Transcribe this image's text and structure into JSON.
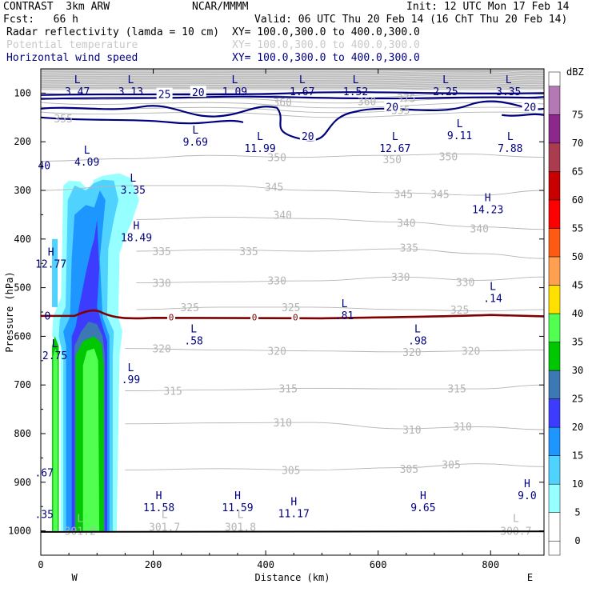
{
  "header": {
    "model": "CONTRAST  3km ARW",
    "center": "NCAR/MMMM",
    "init": "Init: 12 UTC Mon 17 Feb 14",
    "fcst": "Fcst:   66 h",
    "valid": "Valid: 06 UTC Thu 20 Feb 14 (16 ChT Thu 20 Feb 14)",
    "field1": "Radar reflectivity (lamda = 10 cm)",
    "field1_xy": "XY= 100.0,300.0 to 400.0,300.0",
    "field2": "Potential temperature",
    "field2_xy": "XY= 100.0,300.0 to 400.0,300.0",
    "field3": "Horizontal wind speed",
    "field3_xy": "XY= 100.0,300.0 to 400.0,300.0"
  },
  "colors": {
    "theta": "#b4b4b4",
    "wind": "#00007f",
    "freezing": "#7f0000"
  },
  "chart_data": {
    "type": "cross-section",
    "xlabel": "Distance (km)",
    "ylabel": "Pressure (hPa)",
    "xlim": [
      0,
      895
    ],
    "ylim": [
      1050,
      50
    ],
    "x_ticks": [
      0,
      200,
      400,
      600,
      800
    ],
    "y_ticks": [
      100,
      200,
      300,
      400,
      500,
      600,
      700,
      800,
      900,
      1000
    ],
    "west_label": "W",
    "east_label": "E",
    "colorbar": {
      "unit": "dBZ",
      "levels": [
        0,
        5,
        10,
        15,
        20,
        25,
        30,
        35,
        40,
        45,
        50,
        55,
        60,
        65,
        70,
        75
      ],
      "colors": [
        "#ffffff",
        "#96ffff",
        "#50d2ff",
        "#1e96ff",
        "#3c3cff",
        "#3c78b4",
        "#00c800",
        "#50ff50",
        "#ffe100",
        "#ffa050",
        "#ff5a14",
        "#ff0000",
        "#c80000",
        "#aa3c50",
        "#8c288c",
        "#b478b4"
      ]
    },
    "theta_labels": [
      {
        "v": "375",
        "x": 650,
        "p": 110
      },
      {
        "v": "360",
        "x": 430,
        "p": 118
      },
      {
        "v": "360",
        "x": 580,
        "p": 117
      },
      {
        "v": "355",
        "x": 640,
        "p": 135
      },
      {
        "v": "355",
        "x": 40,
        "p": 152
      },
      {
        "v": "350",
        "x": 420,
        "p": 232
      },
      {
        "v": "350",
        "x": 725,
        "p": 230
      },
      {
        "v": "350",
        "x": 625,
        "p": 236
      },
      {
        "v": "345",
        "x": 415,
        "p": 293
      },
      {
        "v": "345",
        "x": 645,
        "p": 307
      },
      {
        "v": "345",
        "x": 710,
        "p": 307
      },
      {
        "v": "340",
        "x": 430,
        "p": 350
      },
      {
        "v": "340",
        "x": 650,
        "p": 367
      },
      {
        "v": "340",
        "x": 780,
        "p": 378
      },
      {
        "v": "335",
        "x": 215,
        "p": 425
      },
      {
        "v": "335",
        "x": 370,
        "p": 425
      },
      {
        "v": "335",
        "x": 655,
        "p": 418
      },
      {
        "v": "330",
        "x": 215,
        "p": 490
      },
      {
        "v": "330",
        "x": 420,
        "p": 485
      },
      {
        "v": "330",
        "x": 640,
        "p": 478
      },
      {
        "v": "330",
        "x": 755,
        "p": 488
      },
      {
        "v": "325",
        "x": 265,
        "p": 540
      },
      {
        "v": "325",
        "x": 445,
        "p": 540
      },
      {
        "v": "325",
        "x": 745,
        "p": 545
      },
      {
        "v": "320",
        "x": 215,
        "p": 625
      },
      {
        "v": "320",
        "x": 420,
        "p": 630
      },
      {
        "v": "320",
        "x": 660,
        "p": 632
      },
      {
        "v": "320",
        "x": 765,
        "p": 630
      },
      {
        "v": "315",
        "x": 235,
        "p": 712
      },
      {
        "v": "315",
        "x": 440,
        "p": 707
      },
      {
        "v": "315",
        "x": 740,
        "p": 707
      },
      {
        "v": "310",
        "x": 430,
        "p": 777
      },
      {
        "v": "310",
        "x": 660,
        "p": 792
      },
      {
        "v": "310",
        "x": 750,
        "p": 785
      },
      {
        "v": "305",
        "x": 445,
        "p": 875
      },
      {
        "v": "305",
        "x": 655,
        "p": 872
      },
      {
        "v": "305",
        "x": 730,
        "p": 863
      }
    ],
    "wind_labels": [
      {
        "v": "25",
        "x": 220,
        "p": 102
      },
      {
        "v": "20",
        "x": 280,
        "p": 98
      },
      {
        "v": "20",
        "x": 625,
        "p": 128
      },
      {
        "v": "20",
        "x": 870,
        "p": 128
      },
      {
        "v": "20",
        "x": 475,
        "p": 188
      }
    ],
    "extrema": [
      {
        "t": "L",
        "v": "3.47",
        "x": 65,
        "p": 80
      },
      {
        "t": "L",
        "v": "3.13",
        "x": 160,
        "p": 80
      },
      {
        "t": "L",
        "v": "1.09",
        "x": 345,
        "p": 80
      },
      {
        "t": "L",
        "v": "1.67",
        "x": 465,
        "p": 80
      },
      {
        "t": "L",
        "v": "1.52",
        "x": 560,
        "p": 80
      },
      {
        "t": "L",
        "v": "2.25",
        "x": 720,
        "p": 80
      },
      {
        "t": "L",
        "v": "3.35",
        "x": 832,
        "p": 80
      },
      {
        "t": "L",
        "v": "9.69",
        "x": 275,
        "p": 183
      },
      {
        "t": "L",
        "v": "11.99",
        "x": 390,
        "p": 196
      },
      {
        "t": "L",
        "v": "12.67",
        "x": 630,
        "p": 196
      },
      {
        "t": "L",
        "v": "9.11",
        "x": 745,
        "p": 170
      },
      {
        "t": "L",
        "v": "7.88",
        "x": 835,
        "p": 196
      },
      {
        "t": "L",
        "v": "4.09",
        "x": 82,
        "p": 224
      },
      {
        "t": "L",
        "v": "3.35",
        "x": 164,
        "p": 282
      },
      {
        "t": "H",
        "v": "14.23",
        "x": 795,
        "p": 322
      },
      {
        "t": "H",
        "v": "18.49",
        "x": 170,
        "p": 380
      },
      {
        "t": "H",
        "v": "12.77",
        "x": 18,
        "p": 434
      },
      {
        "t": "L",
        "v": ".14",
        "x": 804,
        "p": 505
      },
      {
        "t": "L",
        "v": ".81",
        "x": 540,
        "p": 540
      },
      {
        "t": "L",
        "v": ".58",
        "x": 272,
        "p": 592
      },
      {
        "t": "L",
        "v": ".98",
        "x": 670,
        "p": 592
      },
      {
        "t": "L",
        "v": "2.75",
        "x": 25,
        "p": 622
      },
      {
        "t": "L",
        "v": ".99",
        "x": 160,
        "p": 672
      },
      {
        "t": "H",
        "v": "11.58",
        "x": 210,
        "p": 935
      },
      {
        "t": "H",
        "v": "11.59",
        "x": 350,
        "p": 935
      },
      {
        "t": "H",
        "v": "11.17",
        "x": 450,
        "p": 947
      },
      {
        "t": "H",
        "v": "9.65",
        "x": 680,
        "p": 935
      },
      {
        "t": "H",
        "v": "9.0",
        "x": 865,
        "p": 910
      }
    ],
    "edge_labels": [
      {
        "v": "40",
        "x": 6,
        "p": 248
      },
      {
        "v": ".67",
        "x": 6,
        "p": 880
      },
      {
        "v": ".35",
        "x": 6,
        "p": 965
      },
      {
        "v": "0",
        "x": 12,
        "p": 557
      }
    ],
    "freezing_zeros": [
      {
        "v": "0",
        "x": 232,
        "p": 561
      },
      {
        "v": "0",
        "x": 380,
        "p": 561
      },
      {
        "v": "0",
        "x": 453,
        "p": 561
      }
    ],
    "surface_theta": [
      {
        "t": "L",
        "v": "301.7",
        "x": 220,
        "p": 990
      },
      {
        "t": "L",
        "v": "301.8",
        "x": 355,
        "p": 990
      },
      {
        "t": "L",
        "v": "300.7",
        "x": 845,
        "p": 998
      },
      {
        "t": "L",
        "v": "301.2",
        "x": 70,
        "p": 998
      }
    ]
  }
}
